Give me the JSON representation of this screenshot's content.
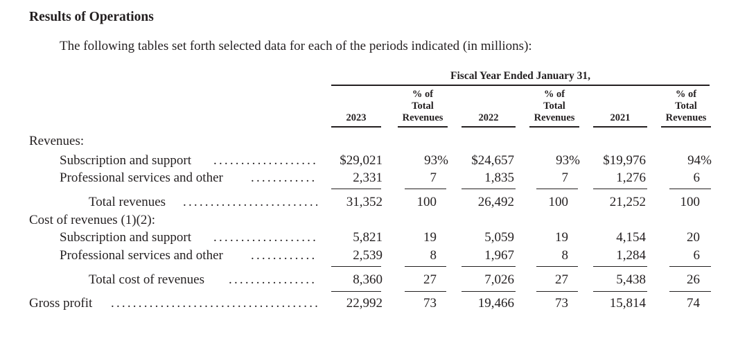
{
  "title": "Results of Operations",
  "intro": "The following tables set forth selected data for each of the periods indicated (in millions):",
  "table": {
    "period_header": "Fiscal Year Ended January 31,",
    "columns": [
      {
        "year": "2023",
        "pct_header": [
          "% of",
          "Total",
          "Revenues"
        ]
      },
      {
        "year": "2022",
        "pct_header": [
          "% of",
          "Total",
          "Revenues"
        ]
      },
      {
        "year": "2021",
        "pct_header": [
          "% of",
          "Total",
          "Revenues"
        ]
      }
    ],
    "sections": {
      "revenues": "Revenues:",
      "cost_of_revenues": "Cost of revenues (1)(2):"
    },
    "rows": [
      {
        "label": "Subscription and support",
        "values": [
          "$29,021",
          "93%",
          "$24,657",
          "93%",
          "$19,976",
          "94%"
        ]
      },
      {
        "label": "Professional services and other",
        "values": [
          "2,331",
          "7",
          "1,835",
          "7",
          "1,276",
          "6"
        ]
      },
      {
        "label": "Total revenues",
        "values": [
          "31,352",
          "100",
          "26,492",
          "100",
          "21,252",
          "100"
        ]
      },
      {
        "label": "Subscription and support",
        "values": [
          "5,821",
          "19",
          "5,059",
          "19",
          "4,154",
          "20"
        ]
      },
      {
        "label": "Professional services and other",
        "values": [
          "2,539",
          "8",
          "1,967",
          "8",
          "1,284",
          "6"
        ]
      },
      {
        "label": "Total cost of revenues",
        "values": [
          "8,360",
          "27",
          "7,026",
          "27",
          "5,438",
          "26"
        ]
      },
      {
        "label": "Gross profit",
        "values": [
          "22,992",
          "73",
          "19,466",
          "73",
          "15,814",
          "74"
        ]
      }
    ]
  }
}
